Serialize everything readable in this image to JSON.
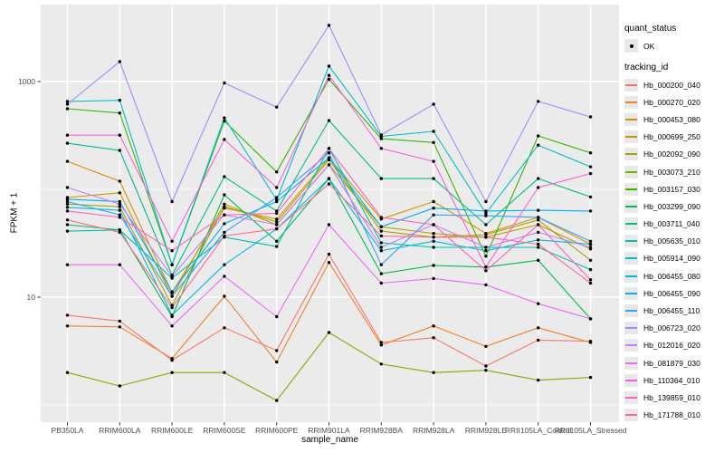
{
  "figure": {
    "y_axis_title": "FPKM + 1",
    "x_axis_title": "sample_name",
    "tick_text_color": "#4D4D4D"
  },
  "legend": {
    "quant_title": "quant_status",
    "quant_ok_label": "OK",
    "tracking_title": "tracking_id"
  },
  "chart_data": {
    "type": "line",
    "title": "",
    "xlabel": "sample_name",
    "ylabel": "FPKM + 1",
    "y_scale": "log10",
    "ylim": [
      0.7,
      5200
    ],
    "grid": true,
    "legend_position": "right",
    "panel_bg": "#EBEBEB",
    "grid_color": "#FFFFFF",
    "point_color": "#000000",
    "point_legend_label": "OK",
    "y_ticks": [
      {
        "label": "1000",
        "value": 1000
      },
      {
        "label": "10",
        "value": 10
      }
    ],
    "y_minor_breaks": [
      1,
      100
    ],
    "categories": [
      "PB350LA",
      "RRIM600LA",
      "RRIM600LE",
      "RRIM600SE",
      "RRIM600PE",
      "RRIM901LA",
      "RRIM928BA",
      "RRIM928LA",
      "RRIM928LE",
      "RRII105LA_Control",
      "RRII105LA_Stressed"
    ],
    "series": [
      {
        "name": "Hb_000200_040",
        "color": "#F8766D",
        "values": [
          6.8,
          6.0,
          2.6,
          5.2,
          3.2,
          25,
          3.8,
          4.2,
          2.3,
          4.0,
          3.9
        ]
      },
      {
        "name": "Hb_000270_020",
        "color": "#EA8331",
        "values": [
          5.4,
          5.3,
          2.7,
          10.2,
          2.5,
          21,
          3.6,
          5.4,
          3.5,
          5.2,
          3.8
        ]
      },
      {
        "name": "Hb_000453_080",
        "color": "#D89000",
        "values": [
          182,
          119,
          11,
          67,
          53,
          196,
          53,
          77,
          39,
          55,
          31
        ]
      },
      {
        "name": "Hb_000699_250",
        "color": "#C09B00",
        "values": [
          84,
          93,
          10.2,
          73,
          47,
          169,
          45,
          39,
          36,
          47,
          28
        ]
      },
      {
        "name": "Hb_002092_090",
        "color": "#A3A500",
        "values": [
          73,
          69,
          8.4,
          69,
          50,
          188,
          41,
          36,
          38,
          52,
          22
        ]
      },
      {
        "name": "Hb_003073_210",
        "color": "#7CAE00",
        "values": [
          2.0,
          1.5,
          2.0,
          2.0,
          1.1,
          4.7,
          2.4,
          2.0,
          2.1,
          1.7,
          1.8
        ]
      },
      {
        "name": "Hb_003157_030",
        "color": "#39B600",
        "values": [
          560,
          510,
          20,
          430,
          145,
          1050,
          295,
          272,
          24,
          313,
          218
        ]
      },
      {
        "name": "Hb_003299_090",
        "color": "#00BB4E",
        "values": [
          47,
          42,
          6.6,
          89,
          33,
          126,
          16.5,
          19.7,
          19,
          22,
          6.3
        ]
      },
      {
        "name": "Hb_003711_040",
        "color": "#00BF7D",
        "values": [
          268,
          230,
          16,
          131,
          63,
          435,
          126,
          126,
          47,
          126,
          85
        ]
      },
      {
        "name": "Hb_005635_010",
        "color": "#00C1A3",
        "values": [
          41,
          42,
          15,
          36,
          29.5,
          240,
          32,
          29,
          29,
          29,
          18
        ]
      },
      {
        "name": "Hb_005914_090",
        "color": "#00BFC4",
        "values": [
          653,
          670,
          20,
          460,
          80,
          1390,
          310,
          345,
          60,
          257,
          162
        ]
      },
      {
        "name": "Hb_006455_080",
        "color": "#00BAE0",
        "values": [
          68,
          64,
          6.8,
          20,
          43,
          126,
          27,
          33,
          27,
          34,
          31
        ]
      },
      {
        "name": "Hb_006455_090",
        "color": "#00B0F6",
        "values": [
          81,
          77,
          11.2,
          48,
          77,
          196,
          45,
          67,
          63,
          64,
          63
        ]
      },
      {
        "name": "Hb_006455_110",
        "color": "#35A2FF",
        "values": [
          77,
          58,
          10.2,
          40,
          84,
          218,
          20,
          58,
          57,
          55,
          33
        ]
      },
      {
        "name": "Hb_006723_020",
        "color": "#9590FF",
        "values": [
          616,
          1530,
          77,
          970,
          580,
          3320,
          320,
          616,
          77,
          655,
          470
        ]
      },
      {
        "name": "Hb_012016_020",
        "color": "#C77CFF",
        "values": [
          104,
          73,
          15.6,
          58,
          47,
          169,
          29,
          47,
          29,
          40,
          29
        ]
      },
      {
        "name": "Hb_081879_030",
        "color": "#E76BF3",
        "values": [
          20,
          20,
          5.4,
          15.6,
          6.6,
          47,
          13.5,
          14.9,
          13,
          8.7,
          6.3
        ]
      },
      {
        "name": "Hb_110364_010",
        "color": "#FA62DB",
        "values": [
          318,
          318,
          33,
          290,
          104,
          1140,
          240,
          182,
          19,
          104,
          140
        ]
      },
      {
        "name": "Hb_139859_010",
        "color": "#FF62BC",
        "values": [
          63,
          55,
          27,
          58,
          60,
          240,
          55,
          47,
          17.6,
          47,
          14.5
        ]
      },
      {
        "name": "Hb_171788_010",
        "color": "#FF6A98",
        "values": [
          52,
          40,
          8,
          37,
          43,
          112,
          37,
          36,
          36,
          31,
          13.5
        ]
      }
    ]
  }
}
